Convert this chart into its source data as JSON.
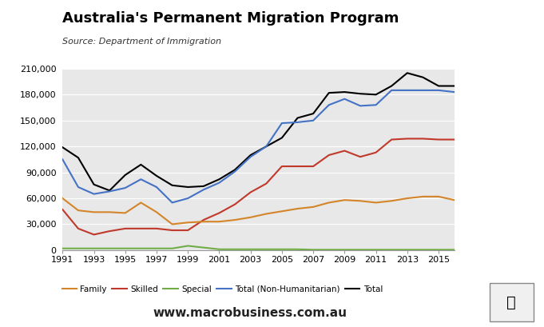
{
  "title": "Australia's Permanent Migration Program",
  "subtitle": "Source: Department of Immigration",
  "years": [
    1991,
    1992,
    1993,
    1994,
    1995,
    1996,
    1997,
    1998,
    1999,
    2000,
    2001,
    2002,
    2003,
    2004,
    2005,
    2006,
    2007,
    2008,
    2009,
    2010,
    2011,
    2012,
    2013,
    2014,
    2015,
    2016
  ],
  "family": [
    60000,
    46000,
    44000,
    44000,
    43000,
    55000,
    44000,
    30000,
    32000,
    33000,
    33000,
    35000,
    38000,
    42000,
    45000,
    48000,
    50000,
    55000,
    58000,
    57000,
    55000,
    57000,
    60000,
    62000,
    62000,
    58000
  ],
  "skilled": [
    47000,
    25000,
    18000,
    22000,
    25000,
    25000,
    25000,
    23000,
    23000,
    35000,
    43000,
    53000,
    67000,
    77000,
    97000,
    97000,
    97000,
    110000,
    115000,
    108000,
    113000,
    128000,
    129000,
    129000,
    128000,
    128000
  ],
  "special": [
    2000,
    2000,
    2000,
    2000,
    2000,
    2000,
    2000,
    2000,
    5000,
    3000,
    1000,
    1000,
    1000,
    1000,
    1000,
    1000,
    500,
    500,
    500,
    500,
    500,
    500,
    500,
    500,
    500,
    500
  ],
  "total_non_hum": [
    105000,
    73000,
    65000,
    68000,
    72000,
    82000,
    73000,
    55000,
    60000,
    70000,
    78000,
    91000,
    108000,
    120000,
    147000,
    148000,
    150000,
    168000,
    175000,
    167000,
    168000,
    185000,
    185000,
    185000,
    185000,
    183000
  ],
  "total": [
    119000,
    107000,
    76000,
    69000,
    87000,
    99000,
    86000,
    75000,
    73000,
    74000,
    82000,
    93000,
    110000,
    120000,
    130000,
    153000,
    158000,
    182000,
    183000,
    181000,
    180000,
    190000,
    205000,
    200000,
    190000,
    190000
  ],
  "family_color": "#D4852A",
  "skilled_color": "#C0392B",
  "special_color": "#70AD47",
  "total_non_hum_color": "#4472C4",
  "total_color": "#000000",
  "bg_color": "#E8E8E8",
  "ylim": [
    0,
    210000
  ],
  "yticks": [
    0,
    30000,
    60000,
    90000,
    120000,
    150000,
    180000,
    210000
  ],
  "macro_red": "#CC0000",
  "website": "www.macrobusiness.com.au",
  "xticks": [
    1991,
    1993,
    1995,
    1997,
    1999,
    2001,
    2003,
    2005,
    2007,
    2009,
    2011,
    2013,
    2015
  ]
}
